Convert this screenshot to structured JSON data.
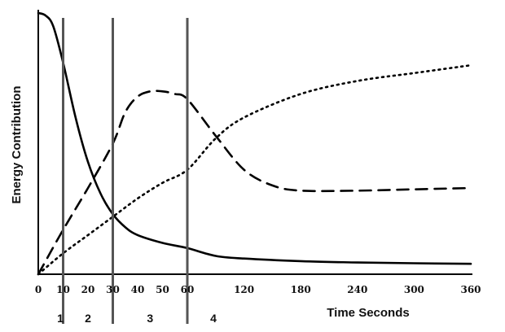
{
  "chart_data": {
    "type": "line",
    "title": "",
    "xlabel": "Time Seconds",
    "ylabel": "Energy Contribution",
    "x_tick_labels": [
      "0",
      "10",
      "20",
      "30",
      "40",
      "50",
      "60",
      "120",
      "180",
      "240",
      "300",
      "360"
    ],
    "x_ticks": [
      0,
      10,
      20,
      30,
      40,
      50,
      60,
      120,
      180,
      240,
      300,
      360
    ],
    "ylim": [
      0,
      100
    ],
    "grid": false,
    "legend": "none",
    "y_tick_labels_shown": false,
    "phase_boundaries": [
      10,
      30,
      60
    ],
    "phase_labels": [
      "1",
      "2",
      "3",
      "4"
    ],
    "series": [
      {
        "style": "solid",
        "x": [
          0,
          3,
          6,
          10,
          15,
          20,
          25,
          30,
          35,
          40,
          50,
          60,
          90,
          120,
          180,
          240,
          300,
          360
        ],
        "values": [
          100,
          99,
          95,
          81,
          60,
          43,
          31,
          23,
          18,
          15,
          12,
          10,
          7,
          6,
          5,
          4.5,
          4.2,
          4
        ]
      },
      {
        "style": "dashed",
        "x": [
          0,
          10,
          20,
          30,
          35,
          40,
          45,
          50,
          55,
          60,
          90,
          120,
          150,
          180,
          240,
          300,
          360
        ],
        "values": [
          0,
          17,
          33,
          50,
          62,
          68,
          70,
          70,
          69,
          67,
          53,
          40,
          34,
          32,
          32,
          32.5,
          33
        ]
      },
      {
        "style": "dotted",
        "x": [
          0,
          10,
          20,
          30,
          40,
          50,
          60,
          90,
          120,
          180,
          240,
          300,
          360
        ],
        "values": [
          0,
          8,
          15,
          22,
          29,
          35,
          40,
          52,
          60,
          69,
          74,
          77,
          80
        ]
      }
    ]
  }
}
